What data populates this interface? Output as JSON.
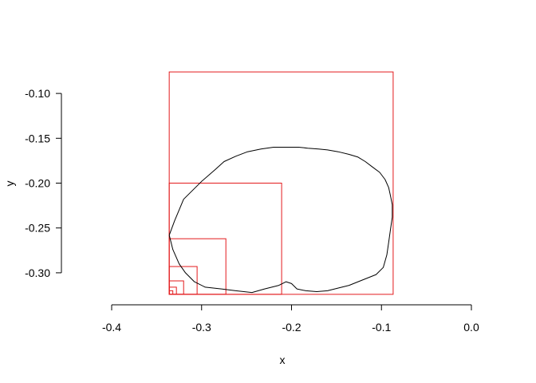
{
  "chart_data": {
    "type": "scatter",
    "title": "",
    "xlabel": "x",
    "ylabel": "y",
    "xlim": [
      -0.4,
      0.0
    ],
    "ylim": [
      -0.325,
      -0.075
    ],
    "x_ticks": [
      -0.4,
      -0.3,
      -0.2,
      -0.1,
      0.0
    ],
    "x_tick_labels": [
      "-0.4",
      "-0.3",
      "-0.2",
      "-0.1",
      "0.0"
    ],
    "y_ticks": [
      -0.1,
      -0.15,
      -0.2,
      -0.25,
      -0.3
    ],
    "y_tick_labels": [
      "-0.10",
      "-0.15",
      "-0.20",
      "-0.25",
      "-0.30"
    ],
    "grid": false,
    "colors": {
      "outline": "#000000",
      "boxes": "#e31a1c"
    },
    "outline": {
      "x": [
        -0.336,
        -0.33,
        -0.32,
        -0.3,
        -0.285,
        -0.275,
        -0.262,
        -0.249,
        -0.234,
        -0.22,
        -0.205,
        -0.192,
        -0.182,
        -0.17,
        -0.16,
        -0.148,
        -0.136,
        -0.126,
        -0.118,
        -0.11,
        -0.102,
        -0.096,
        -0.092,
        -0.09,
        -0.088,
        -0.088,
        -0.09,
        -0.092,
        -0.094,
        -0.098,
        -0.106,
        -0.116,
        -0.126,
        -0.136,
        -0.144,
        -0.152,
        -0.16,
        -0.172,
        -0.184,
        -0.194,
        -0.2,
        -0.206,
        -0.214,
        -0.23,
        -0.244,
        -0.262,
        -0.278,
        -0.296,
        -0.308,
        -0.318,
        -0.325,
        -0.332,
        -0.336
      ],
      "y": [
        -0.258,
        -0.242,
        -0.218,
        -0.198,
        -0.185,
        -0.176,
        -0.17,
        -0.165,
        -0.162,
        -0.16,
        -0.16,
        -0.16,
        -0.161,
        -0.162,
        -0.163,
        -0.165,
        -0.168,
        -0.171,
        -0.176,
        -0.182,
        -0.188,
        -0.196,
        -0.205,
        -0.214,
        -0.224,
        -0.238,
        -0.252,
        -0.266,
        -0.28,
        -0.294,
        -0.302,
        -0.306,
        -0.31,
        -0.314,
        -0.316,
        -0.318,
        -0.32,
        -0.321,
        -0.32,
        -0.318,
        -0.312,
        -0.31,
        -0.314,
        -0.318,
        -0.322,
        -0.32,
        -0.318,
        -0.316,
        -0.31,
        -0.3,
        -0.29,
        -0.274,
        -0.258
      ]
    },
    "boxes": [
      {
        "x0": -0.336,
        "y0": -0.324,
        "x1": -0.087,
        "y1": -0.076
      },
      {
        "x0": -0.336,
        "y0": -0.324,
        "x1": -0.211,
        "y1": -0.2
      },
      {
        "x0": -0.336,
        "y0": -0.324,
        "x1": -0.273,
        "y1": -0.262
      },
      {
        "x0": -0.336,
        "y0": -0.324,
        "x1": -0.305,
        "y1": -0.293
      },
      {
        "x0": -0.336,
        "y0": -0.324,
        "x1": -0.32,
        "y1": -0.309
      },
      {
        "x0": -0.336,
        "y0": -0.324,
        "x1": -0.328,
        "y1": -0.316
      },
      {
        "x0": -0.336,
        "y0": -0.324,
        "x1": -0.332,
        "y1": -0.32
      }
    ]
  }
}
